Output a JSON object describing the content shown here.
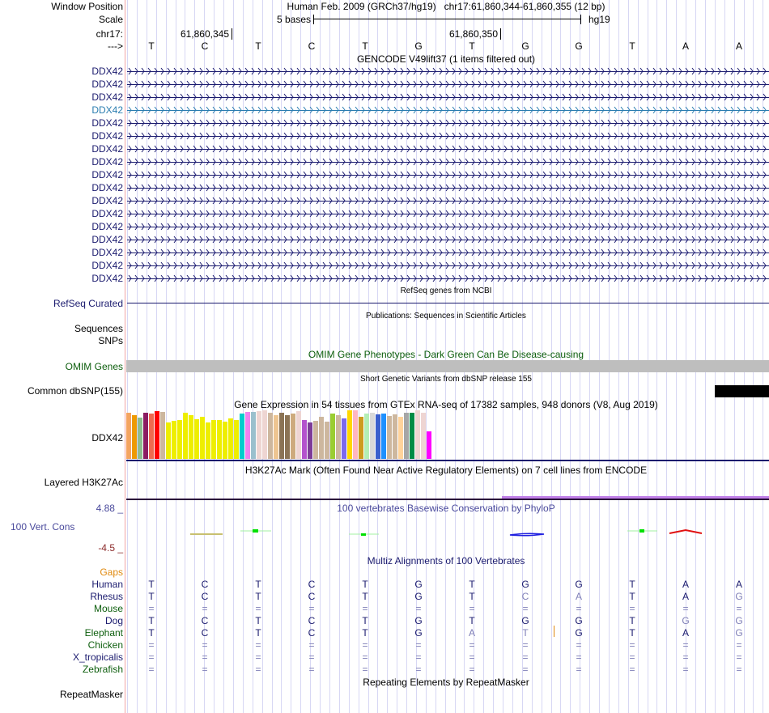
{
  "header": {
    "window_position_label": "Window Position",
    "window_position_value": "Human Feb. 2009 (GRCh37/hg19)   chr17:61,860,344-61,860,355 (12 bp)",
    "scale_label": "Scale",
    "scale_text": "5 bases",
    "scale_assembly": "hg19",
    "chrom_label": "chr17:",
    "coord_ticks": [
      "61,860,345",
      "61,860,350"
    ],
    "strand_label": "--->",
    "bases": [
      "T",
      "C",
      "T",
      "C",
      "T",
      "G",
      "T",
      "G",
      "G",
      "T",
      "A",
      "A"
    ]
  },
  "gencode": {
    "title": "GENCODE V49lift37 (1 items filtered out)",
    "items": [
      "DDX42",
      "DDX42",
      "DDX42",
      "DDX42",
      "DDX42",
      "DDX42",
      "DDX42",
      "DDX42",
      "DDX42",
      "DDX42",
      "DDX42",
      "DDX42",
      "DDX42",
      "DDX42",
      "DDX42",
      "DDX42",
      "DDX42"
    ],
    "highlight_index": 3,
    "color": "#1a1a6e",
    "highlight_color": "#2a7db0"
  },
  "refseq": {
    "title": "RefSeq genes from NCBI",
    "label": "RefSeq Curated"
  },
  "publications": {
    "title": "Publications: Sequences in Scientific Articles",
    "labels": [
      "Sequences",
      "SNPs"
    ]
  },
  "omim": {
    "title": "OMIM Gene Phenotypes - Dark Green Can Be Disease-causing",
    "label": "OMIM Genes",
    "bar_color": "#bebebe"
  },
  "dbsnp": {
    "title": "Short Genetic Variants from dbSNP release 155",
    "label": "Common dbSNP(155)"
  },
  "gtex": {
    "title": "Gene Expression in 54 tissues from GTEx RNA-seq of 17382 samples, 948 donors (V8, Aug 2019)",
    "label": "DDX42",
    "bars": [
      {
        "color": "#f4a460",
        "value": 0.95
      },
      {
        "color": "#ee9a00",
        "value": 0.9
      },
      {
        "color": "#8fbc8f",
        "value": 0.85
      },
      {
        "color": "#8b1c62",
        "value": 0.95
      },
      {
        "color": "#ee6a50",
        "value": 0.93
      },
      {
        "color": "#ff0000",
        "value": 0.98
      },
      {
        "color": "#cdb79e",
        "value": 0.96
      },
      {
        "color": "#eeee00",
        "value": 0.75
      },
      {
        "color": "#eeee00",
        "value": 0.78
      },
      {
        "color": "#eeee00",
        "value": 0.8
      },
      {
        "color": "#eeee00",
        "value": 0.95
      },
      {
        "color": "#eeee00",
        "value": 0.9
      },
      {
        "color": "#eeee00",
        "value": 0.82
      },
      {
        "color": "#eeee00",
        "value": 0.86
      },
      {
        "color": "#eeee00",
        "value": 0.75
      },
      {
        "color": "#eeee00",
        "value": 0.8
      },
      {
        "color": "#eeee00",
        "value": 0.8
      },
      {
        "color": "#eeee00",
        "value": 0.77
      },
      {
        "color": "#eeee00",
        "value": 0.84
      },
      {
        "color": "#eeee00",
        "value": 0.8
      },
      {
        "color": "#00cdcd",
        "value": 0.93
      },
      {
        "color": "#ee82ee",
        "value": 0.96
      },
      {
        "color": "#9ac0cd",
        "value": 0.96
      },
      {
        "color": "#eed5d2",
        "value": 0.98
      },
      {
        "color": "#eed5d2",
        "value": 1.0
      },
      {
        "color": "#cdb79e",
        "value": 0.95
      },
      {
        "color": "#eec591",
        "value": 0.9
      },
      {
        "color": "#8b7355",
        "value": 0.95
      },
      {
        "color": "#8b7355",
        "value": 0.9
      },
      {
        "color": "#cdaa7d",
        "value": 0.93
      },
      {
        "color": "#eed5d2",
        "value": 0.98
      },
      {
        "color": "#b452cd",
        "value": 0.8
      },
      {
        "color": "#7d3c98",
        "value": 0.75
      },
      {
        "color": "#cdb79e",
        "value": 0.78
      },
      {
        "color": "#cdb79e",
        "value": 0.87
      },
      {
        "color": "#cdb79e",
        "value": 0.76
      },
      {
        "color": "#9acd32",
        "value": 0.93
      },
      {
        "color": "#cdb79e",
        "value": 0.9
      },
      {
        "color": "#7b68ee",
        "value": 0.84
      },
      {
        "color": "#ffd700",
        "value": 1.0
      },
      {
        "color": "#ffb6c1",
        "value": 1.0
      },
      {
        "color": "#cd9b1d",
        "value": 0.86
      },
      {
        "color": "#b4eeb4",
        "value": 0.93
      },
      {
        "color": "#d9d9d9",
        "value": 0.95
      },
      {
        "color": "#3a5fcd",
        "value": 0.92
      },
      {
        "color": "#1e90ff",
        "value": 0.93
      },
      {
        "color": "#cdb79e",
        "value": 0.88
      },
      {
        "color": "#cdb79e",
        "value": 0.91
      },
      {
        "color": "#ffd39b",
        "value": 0.86
      },
      {
        "color": "#a6a6a6",
        "value": 0.95
      },
      {
        "color": "#008b45",
        "value": 0.95
      },
      {
        "color": "#eed5d2",
        "value": 1.0
      },
      {
        "color": "#eed5d2",
        "value": 0.95
      },
      {
        "color": "#ff00ff",
        "value": 0.57
      }
    ]
  },
  "h3k27ac": {
    "title": "H3K27Ac Mark (Often Found Near Active Regulatory Elements) on 7 cell lines from ENCODE",
    "label": "Layered H3K27Ac",
    "line_color": "#2a0a3a",
    "signal_color": "#c080e8"
  },
  "conservation": {
    "title": "100 vertebrates Basewise Conservation by PhyloP",
    "label": "100 Vert. Cons",
    "max_label": "4.88 _",
    "min_label": "-4.5 _"
  },
  "multiz": {
    "title": "Multiz Alignments of 100 Vertebrates",
    "gaps_label": "Gaps",
    "species": [
      {
        "name": "Human",
        "color": "navy",
        "bases": [
          "T",
          "C",
          "T",
          "C",
          "T",
          "G",
          "T",
          "G",
          "G",
          "T",
          "A",
          "A"
        ]
      },
      {
        "name": "Rhesus",
        "color": "navy",
        "bases": [
          "T",
          "C",
          "T",
          "C",
          "T",
          "G",
          "T",
          "C",
          "A",
          "T",
          "A",
          "G"
        ]
      },
      {
        "name": "Mouse",
        "color": "green",
        "bases": [
          "=",
          "=",
          "=",
          "=",
          "=",
          "=",
          "=",
          "=",
          "=",
          "=",
          "=",
          "="
        ]
      },
      {
        "name": "Dog",
        "color": "navy",
        "bases": [
          "T",
          "C",
          "T",
          "C",
          "T",
          "G",
          "T",
          "G",
          "G",
          "T",
          "G",
          "G"
        ]
      },
      {
        "name": "Elephant",
        "color": "green",
        "bases": [
          "T",
          "C",
          "T",
          "C",
          "T",
          "G",
          "A",
          "T",
          "G",
          "T",
          "A",
          "G"
        ]
      },
      {
        "name": "Chicken",
        "color": "green",
        "bases": [
          "=",
          "=",
          "=",
          "=",
          "=",
          "=",
          "=",
          "=",
          "=",
          "=",
          "=",
          "="
        ]
      },
      {
        "name": "X_tropicalis",
        "color": "navy",
        "bases": [
          "=",
          "=",
          "=",
          "=",
          "=",
          "=",
          "=",
          "=",
          "=",
          "=",
          "=",
          "="
        ]
      },
      {
        "name": "Zebrafish",
        "color": "green",
        "bases": [
          "=",
          "=",
          "=",
          "=",
          "=",
          "=",
          "=",
          "=",
          "=",
          "=",
          "=",
          "="
        ]
      }
    ],
    "mismatch": {
      "Rhesus": [
        7,
        8,
        11
      ],
      "Dog": [
        10,
        11
      ],
      "Elephant": [
        6,
        7,
        11
      ]
    }
  },
  "repeatmasker": {
    "title": "Repeating Elements by RepeatMasker",
    "label": "RepeatMasker"
  }
}
